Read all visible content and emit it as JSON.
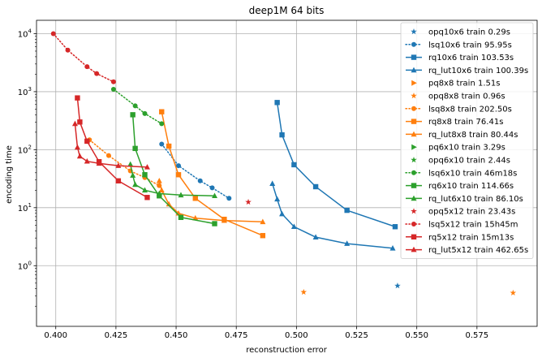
{
  "chart_data": {
    "type": "line",
    "title": "deep1M 64 bits",
    "xlabel": "reconstruction error",
    "ylabel": "encoding time",
    "x_scale": "linear",
    "y_scale": "log",
    "xlim": [
      0.392,
      0.6
    ],
    "ylim": [
      0.09,
      17000
    ],
    "grid": true,
    "legend_position": "top-right",
    "x_ticks": [
      0.4,
      0.425,
      0.45,
      0.475,
      0.5,
      0.525,
      0.55,
      0.575
    ],
    "x_tick_labels": [
      "0.400",
      "0.425",
      "0.450",
      "0.475",
      "0.500",
      "0.525",
      "0.550",
      "0.575"
    ],
    "y_ticks": [
      1,
      10,
      100,
      1000,
      10000
    ],
    "y_tick_labels": [
      "10^0",
      "10^1",
      "10^2",
      "10^3",
      "10^4"
    ],
    "series": [
      {
        "name": "opq10x6 train 0.29s",
        "color": "#1f77b4",
        "marker": "star",
        "line": "none",
        "x": [
          0.542
        ],
        "y": [
          0.45
        ]
      },
      {
        "name": "lsq10x6 train 95.95s",
        "color": "#1f77b4",
        "marker": "circle",
        "line": "dotted",
        "x": [
          0.444,
          0.451,
          0.46,
          0.465,
          0.472
        ],
        "y": [
          125,
          53,
          29,
          22,
          14.5
        ]
      },
      {
        "name": "rq10x6 train 103.53s",
        "color": "#1f77b4",
        "marker": "square",
        "line": "solid",
        "x": [
          0.492,
          0.494,
          0.499,
          0.508,
          0.521,
          0.541
        ],
        "y": [
          650,
          180,
          55,
          23,
          9,
          4.7
        ]
      },
      {
        "name": "rq_lut10x6 train 100.39s",
        "color": "#1f77b4",
        "marker": "triangle",
        "line": "solid",
        "x": [
          0.49,
          0.492,
          0.494,
          0.499,
          0.508,
          0.521,
          0.54
        ],
        "y": [
          26,
          14,
          7.8,
          4.7,
          3.1,
          2.4,
          2.0
        ]
      },
      {
        "name": "pq8x8 train 1.51s",
        "color": "#ff7f0e",
        "marker": "triangle-right",
        "line": "none",
        "x": [],
        "y": []
      },
      {
        "name": "opq8x8 train 0.96s",
        "color": "#ff7f0e",
        "marker": "star",
        "line": "none",
        "x": [
          0.503,
          0.59
        ],
        "y": [
          0.35,
          0.34
        ]
      },
      {
        "name": "lsq8x8 train 202.50s",
        "color": "#ff7f0e",
        "marker": "circle",
        "line": "dotted",
        "x": [
          0.414,
          0.422,
          0.431,
          0.437,
          0.443
        ],
        "y": [
          148,
          79,
          43,
          33,
          24
        ]
      },
      {
        "name": "rq8x8 train 76.41s",
        "color": "#ff7f0e",
        "marker": "square",
        "line": "solid",
        "x": [
          0.444,
          0.447,
          0.451,
          0.458,
          0.47,
          0.486
        ],
        "y": [
          450,
          115,
          37,
          14.5,
          6.3,
          3.3
        ]
      },
      {
        "name": "rq_lut8x8 train 80.44s",
        "color": "#ff7f0e",
        "marker": "triangle",
        "line": "solid",
        "x": [
          0.443,
          0.444,
          0.447,
          0.451,
          0.458,
          0.47,
          0.486
        ],
        "y": [
          29,
          20,
          11.5,
          8,
          6.6,
          6.0,
          5.7
        ]
      },
      {
        "name": "pq6x10 train 3.29s",
        "color": "#2ca02c",
        "marker": "triangle-right",
        "line": "none",
        "x": [],
        "y": []
      },
      {
        "name": "opq6x10 train 2.44s",
        "color": "#2ca02c",
        "marker": "star",
        "line": "none",
        "x": [],
        "y": []
      },
      {
        "name": "lsq6x10 train 46m18s",
        "color": "#2ca02c",
        "marker": "circle",
        "line": "dotted",
        "x": [
          0.424,
          0.433,
          0.437,
          0.444
        ],
        "y": [
          1100,
          570,
          420,
          280
        ]
      },
      {
        "name": "rq6x10 train 114.66s",
        "color": "#2ca02c",
        "marker": "square",
        "line": "solid",
        "x": [
          0.432,
          0.433,
          0.437,
          0.443,
          0.452,
          0.466
        ],
        "y": [
          400,
          105,
          37,
          16,
          6.8,
          5.3
        ]
      },
      {
        "name": "rq_lut6x10 train 86.10s",
        "color": "#2ca02c",
        "marker": "triangle",
        "line": "solid",
        "x": [
          0.431,
          0.432,
          0.433,
          0.437,
          0.443,
          0.452,
          0.466
        ],
        "y": [
          56,
          36,
          25,
          20,
          17.5,
          16.5,
          16
        ]
      },
      {
        "name": "opq5x12 train 23.43s",
        "color": "#d62728",
        "marker": "star",
        "line": "none",
        "x": [
          0.48
        ],
        "y": [
          12.5
        ]
      },
      {
        "name": "lsq5x12 train 15h45m",
        "color": "#d62728",
        "marker": "circle",
        "line": "dotted",
        "x": [
          0.399,
          0.405,
          0.413,
          0.417,
          0.424
        ],
        "y": [
          10000,
          5200,
          2700,
          2050,
          1480
        ]
      },
      {
        "name": "rq5x12 train 15m13s",
        "color": "#d62728",
        "marker": "square",
        "line": "solid",
        "x": [
          0.409,
          0.41,
          0.413,
          0.418,
          0.426,
          0.438
        ],
        "y": [
          780,
          300,
          140,
          62,
          29,
          15
        ]
      },
      {
        "name": "rq_lut5x12 train 462.65s",
        "color": "#d62728",
        "marker": "triangle",
        "line": "solid",
        "x": [
          0.408,
          0.409,
          0.41,
          0.413,
          0.418,
          0.426,
          0.438
        ],
        "y": [
          280,
          110,
          77,
          63,
          58,
          53,
          50
        ]
      }
    ]
  }
}
